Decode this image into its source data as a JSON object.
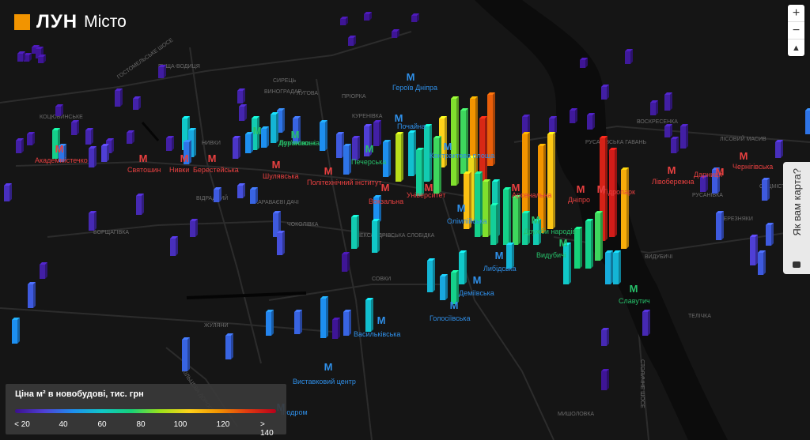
{
  "header": {
    "logo_text": "ЛУН",
    "logo_sub": "Місто"
  },
  "zoom": {
    "in": "+",
    "out": "−",
    "compass": "▲"
  },
  "feedback": {
    "label": "Як вам карта?"
  },
  "legend": {
    "title": "Ціна м² в новобудові, тис. грн",
    "ticks": [
      "< 20",
      "40",
      "60",
      "80",
      "100",
      "120",
      "> 140"
    ]
  },
  "colors": {
    "red": "#e84040",
    "blue": "#2f8fe8",
    "green": "#27c06a"
  },
  "stations": [
    {
      "name": "Академмістечко",
      "color": "red"
    },
    {
      "name": "Святошин",
      "color": "red"
    },
    {
      "name": "Нивки",
      "color": "red"
    },
    {
      "name": "Берестейська",
      "color": "red"
    },
    {
      "name": "Шулявська",
      "color": "red"
    },
    {
      "name": "Політехнічний інститут",
      "color": "red"
    },
    {
      "name": "Вокзальна",
      "color": "red"
    },
    {
      "name": "Університет",
      "color": "red"
    },
    {
      "name": "Арсенальна",
      "color": "red"
    },
    {
      "name": "Дніпро",
      "color": "red"
    },
    {
      "name": "Гідропарк",
      "color": "red"
    },
    {
      "name": "Лівобережна",
      "color": "red"
    },
    {
      "name": "Дарниця",
      "color": "red"
    },
    {
      "name": "Чернігівська",
      "color": "red"
    },
    {
      "name": "Героїв Дніпра",
      "color": "blue"
    },
    {
      "name": "Почайна",
      "color": "blue"
    },
    {
      "name": "Контрактова площа",
      "color": "blue"
    },
    {
      "name": "Олімпійська",
      "color": "blue"
    },
    {
      "name": "Либідська",
      "color": "blue"
    },
    {
      "name": "Деміївська",
      "color": "blue"
    },
    {
      "name": "Голосіївська",
      "color": "blue"
    },
    {
      "name": "Васильківська",
      "color": "blue"
    },
    {
      "name": "Виставковий центр",
      "color": "blue"
    },
    {
      "name": "Іподром",
      "color": "blue"
    },
    {
      "name": "Дорогожичі",
      "color": "green"
    },
    {
      "name": "Лук'янівська",
      "color": "green"
    },
    {
      "name": "Печерська",
      "color": "green"
    },
    {
      "name": "Дружби народів",
      "color": "green"
    },
    {
      "name": "Видубичі",
      "color": "green"
    },
    {
      "name": "Славутич",
      "color": "green"
    }
  ],
  "districts": [
    "ГОСТОМЕЛЬСЬКЕ ШОСЕ",
    "ПУЩА-ВОДИЦЯ",
    "КОЦЮБИНСЬКЕ",
    "НИВКИ",
    "ВІДРАДНИЙ",
    "БОРЩАГІВКА",
    "КАРАВАЄВІ ДАЧІ",
    "ЧОКОЛІВКА",
    "ОЛЕКСАНДРІВСЬКА СЛОБІДКА",
    "СОВКИ",
    "ЖУЛЯНИ",
    "КУРЕНІВКА",
    "ЛУГОВА",
    "ПРІОРКА",
    "СИРЕЦЬ",
    "ВИНОГРАДАР",
    "РУСАНІВСЬКА ГАВАНЬ",
    "ВОСКРЕСЕНКА",
    "РУСАНІВКА",
    "БЕРЕЗНЯКИ",
    "ТЕЛІЧКА",
    "ВИДУБИЧІ",
    "МИШОЛОВКА",
    "СТОЛИЧНЕ ШОСЕ",
    "КІЛЬЦЕВА ДОРОГА",
    "ЛІСОВИЙ МАСИВ",
    "СОЦМІСТО",
    "ДАРНИЦЯ"
  ]
}
